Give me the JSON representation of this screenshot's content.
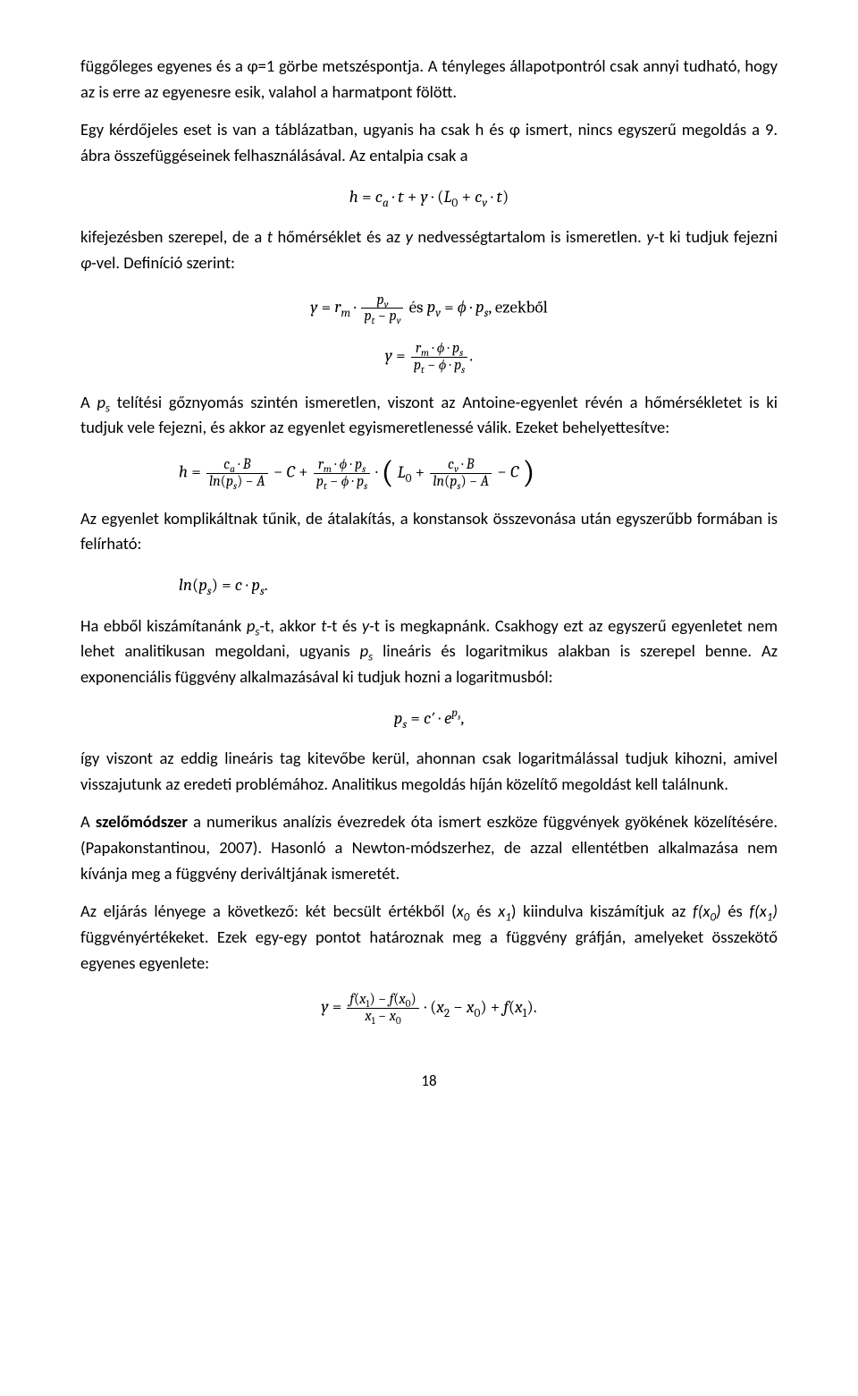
{
  "p1": "függőleges egyenes és a φ=1 görbe metszéspontja. A tényleges állapotpontról csak annyi tudható, hogy az is erre az egyenesre esik, valahol a harmatpont fölött.",
  "p2": "Egy kérdőjeles eset is van a táblázatban, ugyanis ha csak h és φ ismert, nincs egyszerű megoldás a 9. ábra összefüggéseinek felhasználásával. Az entalpia csak a",
  "eq1": "h = c_a · t + y · (L_0 + c_v · t)",
  "p3": "kifejezésben szerepel, de a t hőmérséklet és az y nedvességtartalom is ismeretlen. y-t ki tudjuk fejezni φ-vel. Definíció szerint:",
  "eq2a_lhs": "y = r_m · ",
  "eq2a_num": "p_v",
  "eq2a_den": "p_t − p_v",
  "eq2a_mid": " és p_v = ϕ · p_s, ezekből",
  "eq2b_lhs": "y = ",
  "eq2b_num": "r_m · ϕ · p_s",
  "eq2b_den": "p_t − ϕ · p_s",
  "eq2b_end": ".",
  "p4": "A p_s telítési gőznyomás szintén ismeretlen, viszont az Antoine-egyenlet révén a hőmérsékletet is ki tudjuk vele fejezni, és akkor az egyenlet egyismeretlenessé válik. Ezeket behelyettesítve:",
  "eq3_lhs": "h = ",
  "eq3_f1_num": "c_a · B",
  "eq3_f1_den": "ln(p_s) − A",
  "eq3_mid1": " − C + ",
  "eq3_f2_num": "r_m · ϕ · p_s",
  "eq3_f2_den": "p_t − ϕ · p_s",
  "eq3_mid2": " · ",
  "eq3_paren_l": "(",
  "eq3_L0": "L_0 + ",
  "eq3_f3_num": "c_v · B",
  "eq3_f3_den": "ln(p_s) − A",
  "eq3_tail": " − C",
  "eq3_paren_r": ")",
  "p5": "Az egyenlet komplikáltnak tűnik, de átalakítás, a konstansok összevonása után egyszerűbb formában is felírható:",
  "eq4": "ln(p_s) = c · p_s.",
  "p6": "Ha ebből kiszámítanánk p_s-t, akkor t-t és y-t is megkapnánk. Csakhogy ezt az egyszerű egyenletet nem lehet analitikusan megoldani, ugyanis p_s lineáris és logaritmikus alakban is szerepel benne. Az exponenciális függvény alkalmazásával ki tudjuk hozni a logaritmusból:",
  "eq5_lhs": "p_s = c′ · e",
  "eq5_sup": "p_s",
  "eq5_end": ",",
  "p7": "így viszont az eddig lineáris tag kitevőbe kerül, ahonnan csak logaritmálással tudjuk kihozni, amivel visszajutunk az eredeti problémához. Analitikus megoldás híján közelítő megoldást kell találnunk.",
  "p8_a": "A ",
  "p8_bold": "szelőmódszer",
  "p8_b": " a numerikus analízis évezredek óta ismert eszköze függvények gyökének közelítésére. (Papakonstantinou, 2007). Hasonló a Newton-módszerhez, de azzal ellentétben alkalmazása nem kívánja meg a függvény deriváltjának ismeretét.",
  "p9": "Az eljárás lényege a következő: két becsült értékből (x_0 és x_1) kiindulva kiszámítjuk az f(x_0) és f(x_1) függvényértékeket. Ezek egy-egy pontot határoznak meg a függvény gráfján, amelyeket összekötő egyenes egyenlete:",
  "eq6_lhs": "y = ",
  "eq6_num": "f(x_1) − f(x_0)",
  "eq6_den": "x_1 − x_0",
  "eq6_tail": " · (x_2 − x_0) + f(x_1).",
  "pageNumber": "18"
}
